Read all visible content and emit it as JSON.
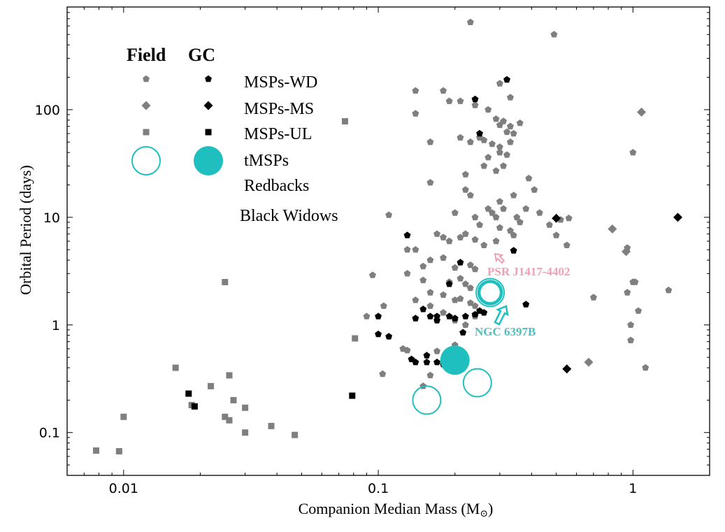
{
  "chart_data": {
    "type": "scatter",
    "title": "",
    "xlabel": "Companion Median Mass (M",
    "xlabel_sub": "⊙",
    "xlabel_close": ")",
    "ylabel": "Orbital Period (days)",
    "xscale": "log",
    "yscale": "log",
    "xlim": [
      0.006,
      2.0
    ],
    "ylim": [
      0.04,
      900
    ],
    "xticks": [
      0.01,
      0.1,
      1
    ],
    "xtick_labels": [
      "0.01",
      "0.1",
      "1"
    ],
    "yticks": [
      0.1,
      1,
      10,
      100
    ],
    "ytick_labels": [
      "0.1",
      "1",
      "10",
      "100"
    ],
    "grid": false,
    "legend": {
      "placement": "top-left",
      "header_field": "Field",
      "header_gc": "GC",
      "labels": [
        "MSPs-WD",
        "MSPs-MS",
        "MSPs-UL",
        "tMSPs",
        "Redbacks",
        "Black Widows"
      ]
    },
    "colors": {
      "field": "#7f7f7f",
      "gc": "#000000",
      "tmsp": "#1fbfbf",
      "psr_label": "#f0a0b4",
      "ngc_label": "#4fbfbf"
    },
    "annotations": [
      {
        "text": "PSR J1417-4402",
        "x": 0.41,
        "y": 3.0
      },
      {
        "text": "NGC 6397B",
        "x": 0.36,
        "y": 0.95
      }
    ],
    "series": [
      {
        "name": "MSPs-WD",
        "group": "Field",
        "marker": "pentagon",
        "points": [
          [
            0.23,
            650
          ],
          [
            0.49,
            500
          ],
          [
            0.14,
            150
          ],
          [
            0.18,
            150
          ],
          [
            0.14,
            92
          ],
          [
            0.19,
            120
          ],
          [
            0.21,
            120
          ],
          [
            0.24,
            110
          ],
          [
            0.27,
            100
          ],
          [
            0.3,
            175
          ],
          [
            0.33,
            130
          ],
          [
            0.29,
            82
          ],
          [
            0.3,
            72
          ],
          [
            0.31,
            78
          ],
          [
            0.32,
            62
          ],
          [
            0.33,
            70
          ],
          [
            0.34,
            60
          ],
          [
            0.36,
            75
          ],
          [
            0.25,
            55
          ],
          [
            0.26,
            52
          ],
          [
            0.28,
            48
          ],
          [
            0.3,
            45
          ],
          [
            0.23,
            50
          ],
          [
            0.3,
            40
          ],
          [
            0.32,
            38
          ],
          [
            0.33,
            50
          ],
          [
            0.16,
            50
          ],
          [
            0.21,
            55
          ],
          [
            0.27,
            36
          ],
          [
            0.26,
            30
          ],
          [
            0.31,
            30
          ],
          [
            0.22,
            25
          ],
          [
            0.29,
            27
          ],
          [
            0.39,
            23
          ],
          [
            0.16,
            21
          ],
          [
            0.22,
            18
          ],
          [
            0.23,
            16
          ],
          [
            0.3,
            14
          ],
          [
            0.34,
            16
          ],
          [
            0.38,
            12
          ],
          [
            0.41,
            18
          ],
          [
            0.27,
            12
          ],
          [
            0.28,
            11
          ],
          [
            0.31,
            12
          ],
          [
            0.35,
            10
          ],
          [
            0.36,
            9.0
          ],
          [
            0.43,
            11
          ],
          [
            0.47,
            8.5
          ],
          [
            0.24,
            10
          ],
          [
            0.2,
            11
          ],
          [
            0.25,
            8.5
          ],
          [
            0.29,
            10
          ],
          [
            0.3,
            8.0
          ],
          [
            0.33,
            7.5
          ],
          [
            0.34,
            6.8
          ],
          [
            0.18,
            6.5
          ],
          [
            0.19,
            6.0
          ],
          [
            0.21,
            6.5
          ],
          [
            0.22,
            7.0
          ],
          [
            0.24,
            6.2
          ],
          [
            0.26,
            5.5
          ],
          [
            0.29,
            6.0
          ],
          [
            0.17,
            7.0
          ],
          [
            0.14,
            5.0
          ],
          [
            0.15,
            3.5
          ],
          [
            0.16,
            4.0
          ],
          [
            0.18,
            4.2
          ],
          [
            0.2,
            3.4
          ],
          [
            0.23,
            3.6
          ],
          [
            0.24,
            3.3
          ],
          [
            0.13,
            3.0
          ],
          [
            0.19,
            2.5
          ],
          [
            0.21,
            2.7
          ],
          [
            0.22,
            2.4
          ],
          [
            0.23,
            2.2
          ],
          [
            0.15,
            2.6
          ],
          [
            0.16,
            2.0
          ],
          [
            0.18,
            1.9
          ],
          [
            0.2,
            1.7
          ],
          [
            0.21,
            1.75
          ],
          [
            0.23,
            1.6
          ],
          [
            0.24,
            1.5
          ],
          [
            0.095,
            2.9
          ],
          [
            0.105,
            1.5
          ],
          [
            0.14,
            1.7
          ],
          [
            0.16,
            1.5
          ],
          [
            0.18,
            1.3
          ],
          [
            0.2,
            1.1
          ],
          [
            0.22,
            1.0
          ],
          [
            0.24,
            1.2
          ],
          [
            0.09,
            1.2
          ],
          [
            0.11,
            10.5
          ],
          [
            0.13,
            5.0
          ],
          [
            0.2,
            0.65
          ],
          [
            0.19,
            0.55
          ],
          [
            0.17,
            0.57
          ],
          [
            0.19,
            0.45
          ],
          [
            0.21,
            0.4
          ],
          [
            0.125,
            0.6
          ],
          [
            0.13,
            0.58
          ],
          [
            0.16,
            0.34
          ],
          [
            0.15,
            0.27
          ],
          [
            0.104,
            0.35
          ]
        ]
      },
      {
        "name": "MSPs-MS",
        "group": "Field",
        "marker": "diamond",
        "points": [
          [
            1.08,
            95
          ],
          [
            0.83,
            7.8
          ],
          [
            0.94,
            4.8
          ],
          [
            0.67,
            0.45
          ]
        ]
      },
      {
        "name": "MSPs-UL",
        "group": "Field",
        "marker": "square",
        "points": [
          [
            0.074,
            78
          ],
          [
            0.025,
            2.5
          ],
          [
            0.081,
            0.75
          ],
          [
            0.016,
            0.4
          ],
          [
            0.022,
            0.27
          ],
          [
            0.026,
            0.34
          ],
          [
            0.0185,
            0.18
          ],
          [
            0.027,
            0.2
          ],
          [
            0.03,
            0.17
          ],
          [
            0.01,
            0.14
          ],
          [
            0.025,
            0.14
          ],
          [
            0.026,
            0.13
          ],
          [
            0.038,
            0.115
          ],
          [
            0.03,
            0.1
          ],
          [
            0.047,
            0.095
          ],
          [
            0.0078,
            0.068
          ],
          [
            0.0096,
            0.067
          ]
        ]
      },
      {
        "name": "Redbacks",
        "group": "Field",
        "marker": "pentagon",
        "points": [
          [
            0.52,
            9.5
          ],
          [
            0.56,
            9.8
          ],
          [
            0.5,
            6.8
          ],
          [
            0.55,
            5.5
          ],
          [
            0.95,
            5.2
          ],
          [
            1.0,
            40
          ],
          [
            1.0,
            2.5
          ],
          [
            1.02,
            2.5
          ],
          [
            0.95,
            2.0
          ],
          [
            1.05,
            1.35
          ],
          [
            0.98,
            1.0
          ],
          [
            0.98,
            0.72
          ],
          [
            1.38,
            2.1
          ],
          [
            0.7,
            1.8
          ],
          [
            1.12,
            0.4
          ]
        ]
      },
      {
        "name": "MSPs-WD",
        "group": "GC",
        "marker": "pentagon",
        "points": [
          [
            0.32,
            190
          ],
          [
            0.24,
            125
          ],
          [
            0.25,
            60
          ],
          [
            0.13,
            6.8
          ],
          [
            0.34,
            4.9
          ],
          [
            0.21,
            3.8
          ],
          [
            0.19,
            2.4
          ],
          [
            0.38,
            1.55
          ],
          [
            0.15,
            1.4
          ],
          [
            0.16,
            1.2
          ],
          [
            0.17,
            1.2
          ],
          [
            0.14,
            1.15
          ],
          [
            0.17,
            1.1
          ],
          [
            0.24,
            1.25
          ],
          [
            0.19,
            1.2
          ],
          [
            0.2,
            1.15
          ],
          [
            0.22,
            1.2
          ],
          [
            0.25,
            1.35
          ],
          [
            0.26,
            1.3
          ],
          [
            0.1,
            1.2
          ],
          [
            0.1,
            0.82
          ],
          [
            0.11,
            0.78
          ],
          [
            0.135,
            0.48
          ],
          [
            0.14,
            0.45
          ],
          [
            0.155,
            0.45
          ],
          [
            0.155,
            0.52
          ],
          [
            0.17,
            0.45
          ],
          [
            0.215,
            0.85
          ],
          [
            0.18,
            0.43
          ]
        ]
      },
      {
        "name": "MSPs-MS",
        "group": "GC",
        "marker": "diamond",
        "points": [
          [
            1.5,
            10
          ],
          [
            0.5,
            9.8
          ],
          [
            0.55,
            0.39
          ]
        ]
      },
      {
        "name": "MSPs-UL",
        "group": "GC",
        "marker": "square",
        "points": [
          [
            0.018,
            0.23
          ],
          [
            0.019,
            0.175
          ],
          [
            0.079,
            0.22
          ]
        ]
      },
      {
        "name": "tMSPs",
        "group": "Field",
        "marker": "open-circle",
        "points": [
          [
            0.155,
            0.2
          ],
          [
            0.245,
            0.29
          ],
          [
            0.275,
            2.0
          ]
        ]
      },
      {
        "name": "tMSPs",
        "group": "GC",
        "marker": "filled-circle",
        "points": [
          [
            0.2,
            0.47
          ]
        ]
      }
    ]
  }
}
